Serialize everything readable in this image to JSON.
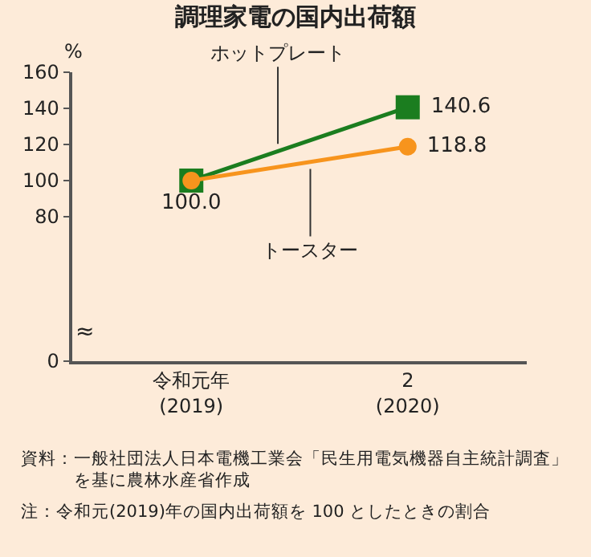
{
  "chart_data": {
    "type": "line",
    "title": "調理家電の国内出荷額",
    "ylabel": "%",
    "categories": [
      "令和元年\n(2019)",
      "2\n(2020)"
    ],
    "series": [
      {
        "name": "ホットプレート",
        "color": "#1b7d1f",
        "marker": "square",
        "values": [
          100.0,
          140.6
        ],
        "value_labels": [
          null,
          "140.6"
        ]
      },
      {
        "name": "トースター",
        "color": "#f7941d",
        "marker": "circle",
        "values": [
          100.0,
          118.8
        ],
        "value_labels": [
          "100.0",
          "118.8"
        ]
      }
    ],
    "ylim": [
      0,
      160
    ],
    "yticks": [
      0,
      80,
      100,
      120,
      140,
      160
    ],
    "grid": false,
    "legend": false,
    "line_style": "solid",
    "annotations": [
      "≈",
      "資料：一般社団法人日本電機工業会「民生用電気機器自主統計調査」を基に農林水産省作成",
      "注：令和元(2019)年の国内出荷額を 100 としたときの割合"
    ]
  }
}
